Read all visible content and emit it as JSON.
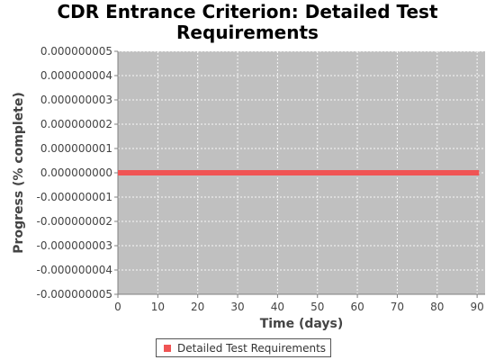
{
  "chart_data": {
    "type": "line",
    "title_line1": "CDR Entrance Criterion: Detailed Test",
    "title_line2": "Requirements",
    "xlabel": "Time (days)",
    "ylabel": "Progress (% complete)",
    "xlim": [
      0,
      92
    ],
    "ylim": [
      -5e-09,
      5e-09
    ],
    "x_ticks": [
      0,
      10,
      20,
      30,
      40,
      50,
      60,
      70,
      80,
      90
    ],
    "x_tick_labels": [
      "0",
      "10",
      "20",
      "30",
      "40",
      "50",
      "60",
      "70",
      "80",
      "90"
    ],
    "y_ticks": [
      5e-09,
      4e-09,
      3e-09,
      2e-09,
      1e-09,
      0,
      -1e-09,
      -2e-09,
      -3e-09,
      -4e-09,
      -5e-09
    ],
    "y_tick_labels": [
      "0.000000005",
      "0.000000004",
      "0.000000003",
      "0.000000002",
      "0.000000001",
      "0.000000000",
      "-0.000000001",
      "-0.000000002",
      "-0.000000003",
      "-0.000000004",
      "-0.000000005"
    ],
    "grid": true,
    "legend_position": "bottom-center",
    "series": [
      {
        "name": "Detailed Test Requirements",
        "color": "#f05454",
        "x": [
          0,
          90.5
        ],
        "y": [
          0,
          0
        ]
      }
    ],
    "plot_background": "#c0c0c0"
  }
}
